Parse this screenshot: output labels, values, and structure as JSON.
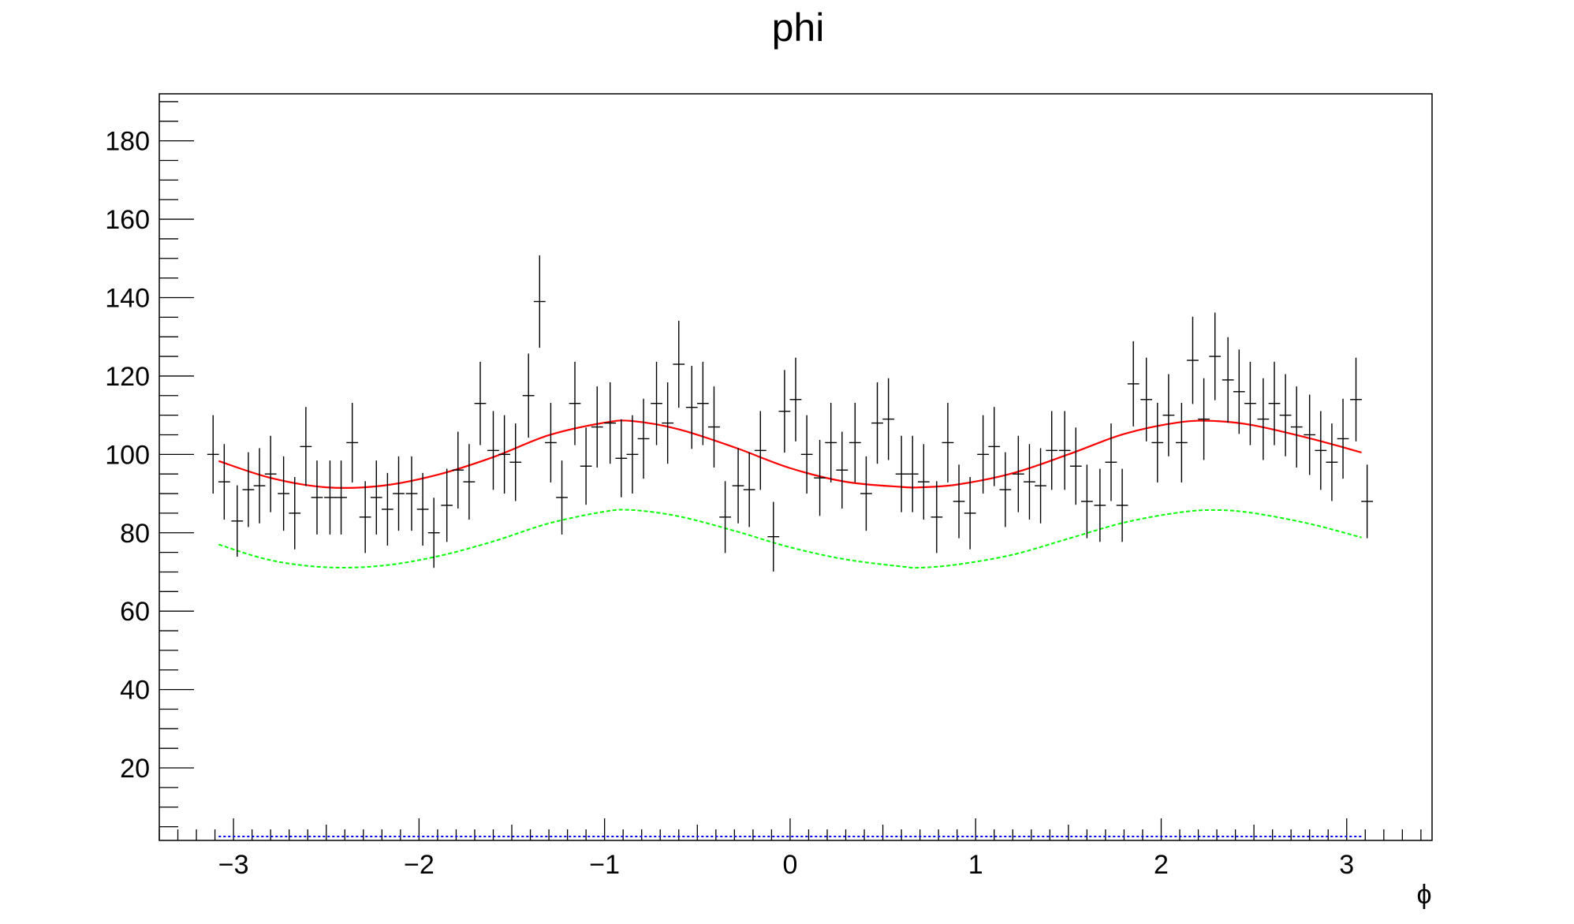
{
  "chart_data": {
    "type": "scatter",
    "title": "phi",
    "xlabel": "ϕ",
    "ylabel": "",
    "xlim": [
      -3.4,
      3.46
    ],
    "ylim": [
      1.5,
      192
    ],
    "x_ticks": [
      -3,
      -2,
      -1,
      0,
      1,
      2,
      3
    ],
    "x_tick_labels": [
      "−3",
      "−2",
      "−1",
      "0",
      "1",
      "2",
      "3"
    ],
    "y_ticks": [
      20,
      40,
      60,
      80,
      100,
      120,
      140,
      160,
      180
    ],
    "y_tick_labels": [
      "20",
      "40",
      "60",
      "80",
      "100",
      "120",
      "140",
      "160",
      "180"
    ],
    "grid": false,
    "legend": "none",
    "series": [
      {
        "kind": "histogram-points",
        "color": "#000000",
        "bin_width": 0.0628,
        "points": [
          [
            -3.11,
            100
          ],
          [
            -3.05,
            93
          ],
          [
            -2.98,
            83
          ],
          [
            -2.92,
            91
          ],
          [
            -2.86,
            92
          ],
          [
            -2.8,
            95
          ],
          [
            -2.73,
            90
          ],
          [
            -2.67,
            85
          ],
          [
            -2.61,
            102
          ],
          [
            -2.55,
            89
          ],
          [
            -2.48,
            89
          ],
          [
            -2.42,
            89
          ],
          [
            -2.36,
            103
          ],
          [
            -2.29,
            84
          ],
          [
            -2.23,
            89
          ],
          [
            -2.17,
            86
          ],
          [
            -2.11,
            90
          ],
          [
            -2.04,
            90
          ],
          [
            -1.98,
            86
          ],
          [
            -1.92,
            80
          ],
          [
            -1.85,
            87
          ],
          [
            -1.79,
            96
          ],
          [
            -1.73,
            93
          ],
          [
            -1.67,
            113
          ],
          [
            -1.6,
            101
          ],
          [
            -1.54,
            100
          ],
          [
            -1.48,
            98
          ],
          [
            -1.41,
            115
          ],
          [
            -1.35,
            139
          ],
          [
            -1.29,
            103
          ],
          [
            -1.23,
            89
          ],
          [
            -1.16,
            113
          ],
          [
            -1.1,
            97
          ],
          [
            -1.04,
            107
          ],
          [
            -0.97,
            108
          ],
          [
            -0.91,
            99
          ],
          [
            -0.85,
            100
          ],
          [
            -0.79,
            104
          ],
          [
            -0.72,
            113
          ],
          [
            -0.66,
            108
          ],
          [
            -0.6,
            123
          ],
          [
            -0.53,
            112
          ],
          [
            -0.47,
            113
          ],
          [
            -0.41,
            107
          ],
          [
            -0.35,
            84
          ],
          [
            -0.28,
            92
          ],
          [
            -0.22,
            91
          ],
          [
            -0.16,
            101
          ],
          [
            -0.09,
            79
          ],
          [
            -0.03,
            111
          ],
          [
            0.03,
            114
          ],
          [
            0.09,
            100
          ],
          [
            0.16,
            94
          ],
          [
            0.22,
            103
          ],
          [
            0.28,
            96
          ],
          [
            0.35,
            103
          ],
          [
            0.41,
            90
          ],
          [
            0.47,
            108
          ],
          [
            0.53,
            109
          ],
          [
            0.6,
            95
          ],
          [
            0.66,
            95
          ],
          [
            0.72,
            93
          ],
          [
            0.79,
            84
          ],
          [
            0.85,
            103
          ],
          [
            0.91,
            88
          ],
          [
            0.97,
            85
          ],
          [
            1.04,
            100
          ],
          [
            1.1,
            102
          ],
          [
            1.16,
            91
          ],
          [
            1.23,
            95
          ],
          [
            1.29,
            93
          ],
          [
            1.35,
            92
          ],
          [
            1.41,
            101
          ],
          [
            1.48,
            101
          ],
          [
            1.54,
            97
          ],
          [
            1.6,
            88
          ],
          [
            1.67,
            87
          ],
          [
            1.73,
            98
          ],
          [
            1.79,
            87
          ],
          [
            1.85,
            118
          ],
          [
            1.92,
            114
          ],
          [
            1.98,
            103
          ],
          [
            2.04,
            110
          ],
          [
            2.11,
            103
          ],
          [
            2.17,
            124
          ],
          [
            2.23,
            109
          ],
          [
            2.29,
            125
          ],
          [
            2.36,
            119
          ],
          [
            2.42,
            116
          ],
          [
            2.48,
            113
          ],
          [
            2.55,
            109
          ],
          [
            2.61,
            113
          ],
          [
            2.67,
            110
          ],
          [
            2.73,
            107
          ],
          [
            2.8,
            105
          ],
          [
            2.86,
            101
          ],
          [
            2.92,
            98
          ],
          [
            2.98,
            104
          ],
          [
            3.05,
            114
          ],
          [
            3.11,
            88
          ]
        ]
      },
      {
        "kind": "function",
        "color": "#ff0000",
        "style": "solid",
        "x_range": [
          -3.08,
          3.08
        ],
        "x": [
          -3.08,
          -2.8,
          -2.5,
          -2.2,
          -1.9,
          -1.6,
          -1.3,
          -1.0,
          -0.85,
          -0.6,
          -0.3,
          0.0,
          0.3,
          0.6,
          0.7,
          0.9,
          1.2,
          1.5,
          1.8,
          2.1,
          2.3,
          2.5,
          2.8,
          3.08
        ],
        "y": [
          98.3,
          94.0,
          91.6,
          92.0,
          94.8,
          99.3,
          104.9,
          108.1,
          108.5,
          106.4,
          101.8,
          96.5,
          93.0,
          91.7,
          91.6,
          92.3,
          95.2,
          100.0,
          105.2,
          108.2,
          108.5,
          107.4,
          104.1,
          100.5
        ]
      },
      {
        "kind": "function",
        "color": "#00ff00",
        "style": "dashed",
        "x_range": [
          -3.08,
          3.08
        ],
        "x": [
          -3.08,
          -2.8,
          -2.5,
          -2.2,
          -1.9,
          -1.6,
          -1.3,
          -1.0,
          -0.85,
          -0.6,
          -0.3,
          0.0,
          0.3,
          0.6,
          0.7,
          0.9,
          1.2,
          1.5,
          1.8,
          2.1,
          2.3,
          2.5,
          2.8,
          3.08
        ],
        "y": [
          77.0,
          73.0,
          71.2,
          71.6,
          74.0,
          77.8,
          82.4,
          85.4,
          85.8,
          84.2,
          80.5,
          76.3,
          73.2,
          71.4,
          71.1,
          71.9,
          74.4,
          78.5,
          82.6,
          85.2,
          85.8,
          85.0,
          82.3,
          78.8
        ]
      },
      {
        "kind": "function",
        "color": "#0000ff",
        "style": "dotted",
        "x_range": [
          -3.08,
          3.08
        ],
        "x": [
          -3.08,
          3.08
        ],
        "y": [
          2.5,
          2.5
        ]
      }
    ]
  }
}
